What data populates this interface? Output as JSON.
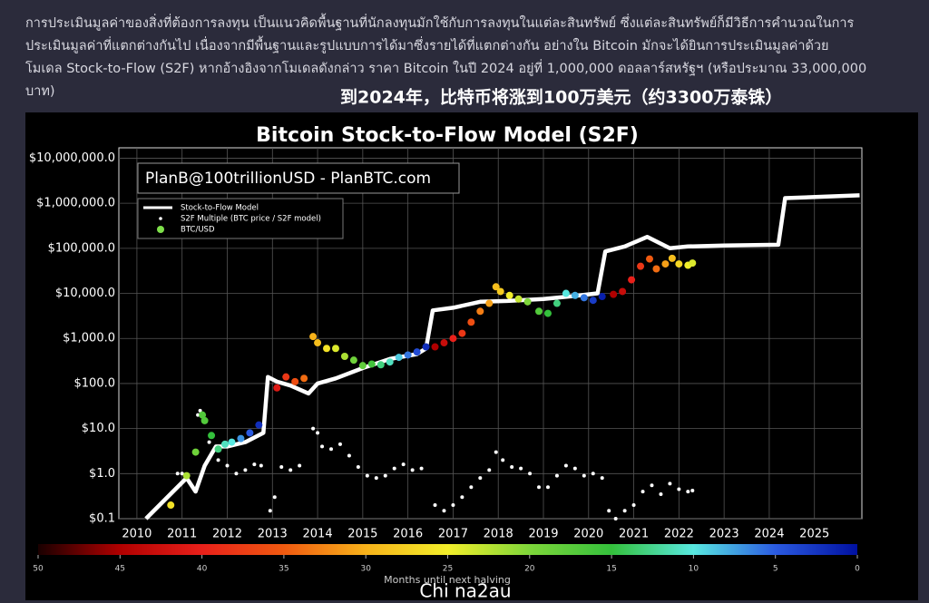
{
  "article": {
    "lines": [
      "การประเมินมูลค่าของสิ่งที่ต้องการลงทุน เป็นแนวคิดพื้นฐานที่นักลงทุนมักใช้กับการลงทุนในแต่ละสินทรัพย์ ซึ่งแต่ละสินทรัพย์ก็มีวิธีการคำนวณในการ",
      "ประเมินมูลค่าที่แตกต่างกันไป เนื่องจากมีพื้นฐานและรูปแบบการได้มาซึ่งรายได้ที่แตกต่างกัน อย่างใน Bitcoin มักจะได้ยินการประเมินมูลค่าด้วย",
      "โมเดล Stock-to-Flow (S2F) หากอ้างอิงจากโมเดลดังกล่าว ราคา Bitcoin ในปี 2024 อยู่ที่ 1,000,000 ดอลลาร์สหรัฐฯ (หรือประมาณ 33,000,000",
      "บาท)"
    ],
    "caption": "到2024年，比特币将涨到100万美元（约3300万泰铢）",
    "watermark": "Chi na2au"
  },
  "chart_data": {
    "type": "line",
    "title": "Bitcoin Stock-to-Flow Model (S2F)",
    "annotation": "PlanB@100trillionUSD - PlanBTC.com",
    "yscale": "log",
    "grid": true,
    "xlim": [
      2009.6,
      2026.05
    ],
    "xticks": [
      2010,
      2011,
      2012,
      2013,
      2014,
      2015,
      2016,
      2017,
      2018,
      2019,
      2020,
      2021,
      2022,
      2023,
      2024,
      2025
    ],
    "ylim": [
      0.1,
      17000000
    ],
    "yticks": [
      {
        "value": 0.1,
        "label": "$0.1"
      },
      {
        "value": 1,
        "label": "$1.0"
      },
      {
        "value": 10,
        "label": "$10.0"
      },
      {
        "value": 100,
        "label": "$100.0"
      },
      {
        "value": 1000,
        "label": "$1,000.0"
      },
      {
        "value": 10000,
        "label": "$10,000.0"
      },
      {
        "value": 100000,
        "label": "$100,000.0"
      },
      {
        "value": 1000000,
        "label": "$1,000,000.0"
      },
      {
        "value": 10000000,
        "label": "$10,000,000.0"
      }
    ],
    "series": [
      {
        "name": "Stock-to-Flow Model",
        "type": "line",
        "color": "#ffffff",
        "x": [
          2010.2,
          2010.8,
          2011.1,
          2011.3,
          2011.5,
          2011.75,
          2012.0,
          2012.4,
          2012.8,
          2012.9,
          2013.1,
          2013.4,
          2013.8,
          2014.0,
          2014.4,
          2015.0,
          2015.6,
          2016.2,
          2016.4,
          2016.55,
          2017.0,
          2017.6,
          2018.2,
          2019.0,
          2019.8,
          2020.2,
          2020.37,
          2020.8,
          2021.3,
          2021.8,
          2022.2,
          2023.0,
          2024.2,
          2024.35,
          2026.0
        ],
        "values": [
          0.1,
          0.4,
          0.8,
          0.4,
          1.5,
          4,
          4,
          5,
          8,
          140,
          110,
          90,
          60,
          100,
          130,
          220,
          350,
          450,
          600,
          4200,
          4800,
          6500,
          6800,
          7500,
          9000,
          10000,
          85000,
          110000,
          180000,
          100000,
          110000,
          115000,
          120000,
          1300000,
          1500000
        ]
      },
      {
        "name": "S2F Multiple (BTC price / S2F model)",
        "type": "scatter",
        "color": "#ffffff",
        "x": [
          2010.9,
          2011.0,
          2011.1,
          2011.35,
          2011.4,
          2011.6,
          2011.8,
          2012.0,
          2012.2,
          2012.4,
          2012.6,
          2012.75,
          2012.95,
          2013.05,
          2013.2,
          2013.4,
          2013.6,
          2013.9,
          2014.0,
          2014.1,
          2014.3,
          2014.5,
          2014.7,
          2014.9,
          2015.1,
          2015.3,
          2015.5,
          2015.7,
          2015.9,
          2016.1,
          2016.3,
          2016.6,
          2016.8,
          2017.0,
          2017.2,
          2017.4,
          2017.6,
          2017.8,
          2017.95,
          2018.1,
          2018.3,
          2018.5,
          2018.7,
          2018.9,
          2019.1,
          2019.3,
          2019.5,
          2019.7,
          2019.9,
          2020.1,
          2020.3,
          2020.45,
          2020.6,
          2020.8,
          2021.0,
          2021.2,
          2021.4,
          2021.6,
          2021.8,
          2022.0,
          2022.2,
          2022.3
        ],
        "values": [
          1.0,
          1.0,
          0.9,
          20,
          25,
          5,
          2,
          1.5,
          1.0,
          1.2,
          1.6,
          1.5,
          0.15,
          0.3,
          1.4,
          1.2,
          1.5,
          10,
          8,
          4,
          3.5,
          4.5,
          2.5,
          1.4,
          0.9,
          0.8,
          0.9,
          1.3,
          1.6,
          1.2,
          1.3,
          0.2,
          0.15,
          0.2,
          0.3,
          0.5,
          0.8,
          1.2,
          3.0,
          2.0,
          1.4,
          1.3,
          1.0,
          0.5,
          0.5,
          0.9,
          1.5,
          1.3,
          0.9,
          1.0,
          0.8,
          0.15,
          0.1,
          0.15,
          0.2,
          0.4,
          0.55,
          0.35,
          0.6,
          0.45,
          0.4,
          0.42
        ]
      },
      {
        "name": "BTC/USD",
        "type": "scatter",
        "color": "#7ee04a",
        "x": [
          2010.75,
          2011.1,
          2011.3,
          2011.45,
          2011.5,
          2011.65,
          2011.8,
          2011.95,
          2012.1,
          2012.3,
          2012.5,
          2012.7,
          2013.1,
          2013.3,
          2013.5,
          2013.7,
          2013.9,
          2014.0,
          2014.2,
          2014.4,
          2014.6,
          2014.8,
          2015.0,
          2015.2,
          2015.4,
          2015.6,
          2015.8,
          2016.0,
          2016.2,
          2016.4,
          2016.6,
          2016.8,
          2017.0,
          2017.2,
          2017.4,
          2017.6,
          2017.8,
          2017.95,
          2018.05,
          2018.25,
          2018.45,
          2018.65,
          2018.9,
          2019.1,
          2019.3,
          2019.5,
          2019.7,
          2019.9,
          2020.1,
          2020.3,
          2020.55,
          2020.75,
          2020.95,
          2021.15,
          2021.35,
          2021.5,
          2021.7,
          2021.85,
          2022.0,
          2022.2,
          2022.3
        ],
        "values": [
          0.2,
          0.9,
          3,
          20,
          15,
          7,
          3.5,
          4.5,
          5,
          6,
          8,
          12,
          80,
          140,
          110,
          130,
          1100,
          800,
          600,
          600,
          400,
          330,
          250,
          270,
          260,
          300,
          380,
          430,
          500,
          650,
          650,
          800,
          1000,
          1300,
          2300,
          4000,
          6000,
          14000,
          11000,
          9000,
          7500,
          6500,
          4000,
          3600,
          6000,
          10000,
          9000,
          8000,
          7000,
          8500,
          9500,
          11000,
          20000,
          40000,
          58000,
          35000,
          45000,
          60000,
          45000,
          42000,
          47000
        ],
        "months": [
          26,
          22,
          19,
          17,
          17,
          15,
          13,
          11,
          10,
          7,
          5,
          2,
          41,
          38,
          36,
          34,
          30,
          29,
          26,
          24,
          22,
          19,
          18,
          16,
          13,
          11,
          9,
          6,
          4,
          2,
          45,
          43,
          40,
          38,
          36,
          33,
          31,
          29,
          28,
          25,
          23,
          20,
          17,
          15,
          13,
          10,
          8,
          6,
          3,
          1,
          45,
          43,
          40,
          38,
          35,
          34,
          31,
          29,
          27,
          25,
          24
        ]
      }
    ],
    "colorbar": {
      "label": "Months until next halving",
      "lim": [
        50,
        0
      ],
      "ticks": [
        50,
        45,
        40,
        35,
        30,
        25,
        20,
        15,
        10,
        5,
        0
      ],
      "colors": [
        "#1a0000",
        "#b00000",
        "#e8201a",
        "#f05a10",
        "#f7b21a",
        "#f2ee2a",
        "#7ed63a",
        "#34c03c",
        "#58e8e0",
        "#2a5ae0",
        "#0010a0"
      ]
    }
  }
}
